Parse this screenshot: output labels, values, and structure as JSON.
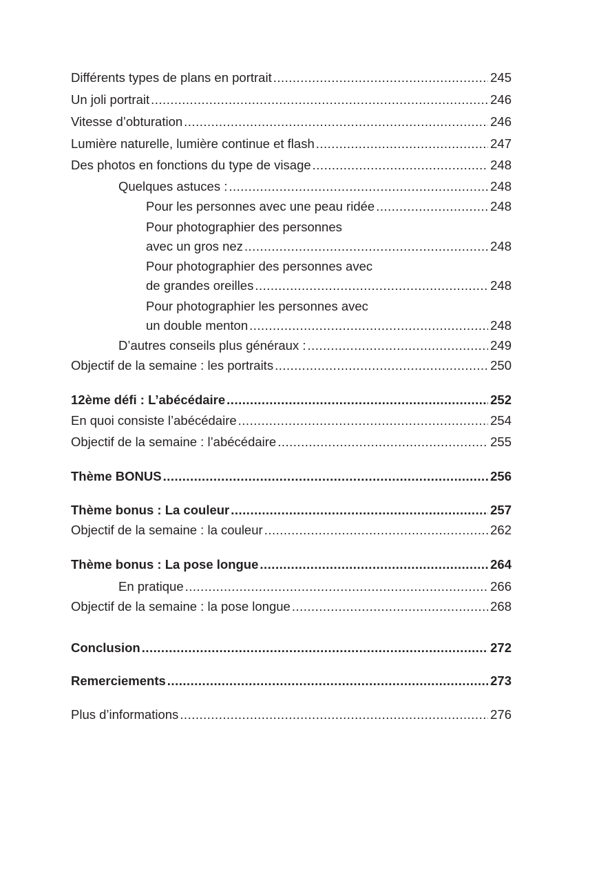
{
  "toc": [
    {
      "title": "Différents types de plans en portrait",
      "page": "245"
    },
    {
      "title": "Un joli portrait",
      "page": "246"
    },
    {
      "title": "Vitesse d’obturation",
      "page": "246"
    },
    {
      "title": "Lumière naturelle, lumière continue et flash",
      "page": "247"
    },
    {
      "title": "Des photos en fonctions du type de visage",
      "page": "248"
    },
    {
      "title": "Quelques astuces :",
      "page": "248"
    },
    {
      "title": "Pour les personnes avec une peau ridée",
      "page": "248"
    },
    {
      "title_line1": "Pour photographier des personnes",
      "title": "avec un gros nez",
      "page": "248"
    },
    {
      "title_line1": "Pour photographier des personnes avec",
      "title": "de grandes oreilles",
      "page": "248"
    },
    {
      "title_line1": "Pour photographier les personnes avec",
      "title": "un double menton",
      "page": "248"
    },
    {
      "title": "D’autres conseils plus généraux :",
      "page": "249"
    },
    {
      "title": "Objectif de la semaine : les portraits",
      "page": "250"
    },
    {
      "title": "12ème défi : L’abécédaire",
      "page": "252"
    },
    {
      "title": "En quoi consiste l’abécédaire",
      "page": "254"
    },
    {
      "title": "Objectif de la semaine : l’abécédaire",
      "page": "255"
    },
    {
      "title": "Thème BONUS",
      "page": "256"
    },
    {
      "title": "Thème bonus : La couleur",
      "page": "257"
    },
    {
      "title": "Objectif de la semaine : la couleur",
      "page": "262"
    },
    {
      "title": "Thème bonus : La pose longue",
      "page": "264"
    },
    {
      "title": "En pratique",
      "page": "266"
    },
    {
      "title": "Objectif de la semaine : la pose longue",
      "page": "268"
    },
    {
      "title": "Conclusion",
      "page": "272"
    },
    {
      "title": "Remerciements",
      "page": "273"
    },
    {
      "title": "Plus d’informations",
      "page": "276"
    }
  ]
}
